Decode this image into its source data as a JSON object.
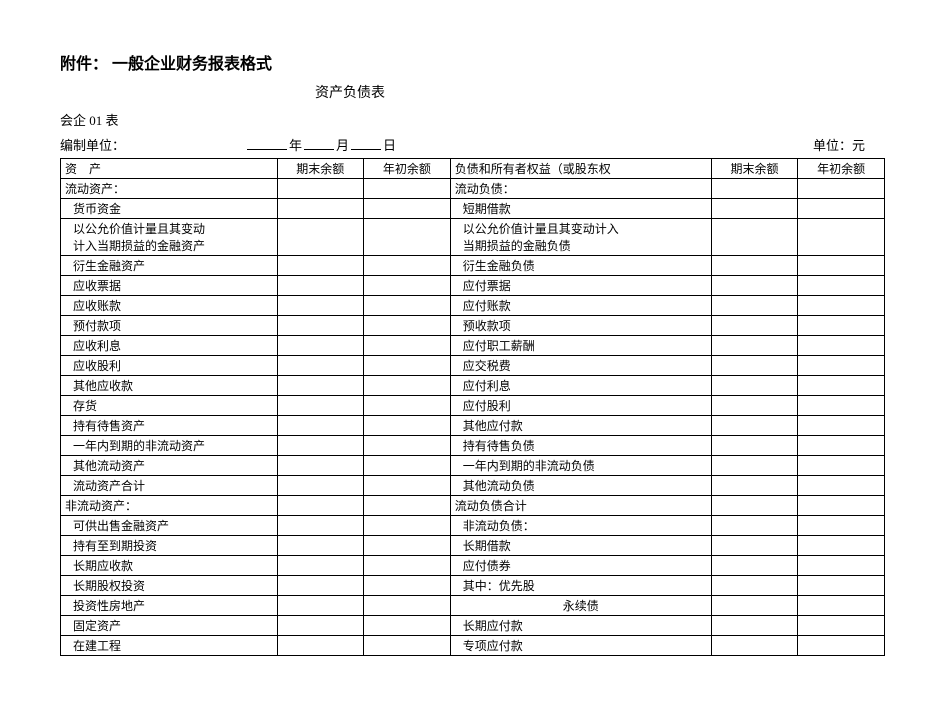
{
  "header": {
    "title_label": "附件：",
    "title_text": "一般企业财务报表格式",
    "subtitle": "资产负债表",
    "form_code": "会企 01 表",
    "prepared_by_label": "编制单位：",
    "year_label": "年",
    "month_label": "月",
    "day_label": "日",
    "unit_label": "单位：元"
  },
  "columns": {
    "asset_header": "资　产",
    "period_end": "期末余额",
    "period_begin": "年初余额",
    "liab_header": "负债和所有者权益（或股东权"
  },
  "rows": [
    {
      "asset": "流动资产：",
      "liab": "流动负债："
    },
    {
      "asset": "货币资金",
      "liab": "短期借款",
      "indent": true
    },
    {
      "asset": "以公允价值计量且其变动",
      "liab": "以公允价值计量且其变动计入",
      "indent": true,
      "tall": true
    },
    {
      "asset": "计入当期损益的金融资产",
      "liab": "当期损益的金融负债",
      "noTop": true
    },
    {
      "asset": "衍生金融资产",
      "liab": "衍生金融负债",
      "indent": true
    },
    {
      "asset": "应收票据",
      "liab": "应付票据",
      "indent": true
    },
    {
      "asset": "应收账款",
      "liab": "应付账款",
      "indent": true
    },
    {
      "asset": "预付款项",
      "liab": "预收款项",
      "indent": true
    },
    {
      "asset": "应收利息",
      "liab": "应付职工薪酬",
      "indent": true
    },
    {
      "asset": "应收股利",
      "liab": "应交税费",
      "indent": true
    },
    {
      "asset": "其他应收款",
      "liab": "应付利息",
      "indent": true
    },
    {
      "asset": "存货",
      "liab": "应付股利",
      "indent": true
    },
    {
      "asset": "持有待售资产",
      "liab": "其他应付款",
      "indent": true
    },
    {
      "asset": "一年内到期的非流动资产",
      "liab": "持有待售负债",
      "indent": true
    },
    {
      "asset": "其他流动资产",
      "liab": "一年内到期的非流动负债",
      "indent": true
    },
    {
      "asset": "流动资产合计",
      "liab": "其他流动负债",
      "indent": true
    },
    {
      "asset": "非流动资产：",
      "liab": "流动负债合计"
    },
    {
      "asset": "可供出售金融资产",
      "liab": "非流动负债：",
      "indent": true
    },
    {
      "asset": "持有至到期投资",
      "liab": "长期借款",
      "indent": true
    },
    {
      "asset": "长期应收款",
      "liab": "应付债券",
      "indent": true
    },
    {
      "asset": "长期股权投资",
      "liab": "其中：优先股",
      "indent": true
    },
    {
      "asset": "投资性房地产",
      "liab": "永续债",
      "indent": true,
      "liab_center": true
    },
    {
      "asset": "固定资产",
      "liab": "长期应付款",
      "indent": true
    },
    {
      "asset": "在建工程",
      "liab": "专项应付款",
      "indent": true
    }
  ],
  "style": {
    "background_color": "#ffffff",
    "text_color": "#000000",
    "border_color": "#000000",
    "title_fontsize": 16,
    "subtitle_fontsize": 14,
    "body_fontsize": 12,
    "font_family": "SimSun"
  }
}
